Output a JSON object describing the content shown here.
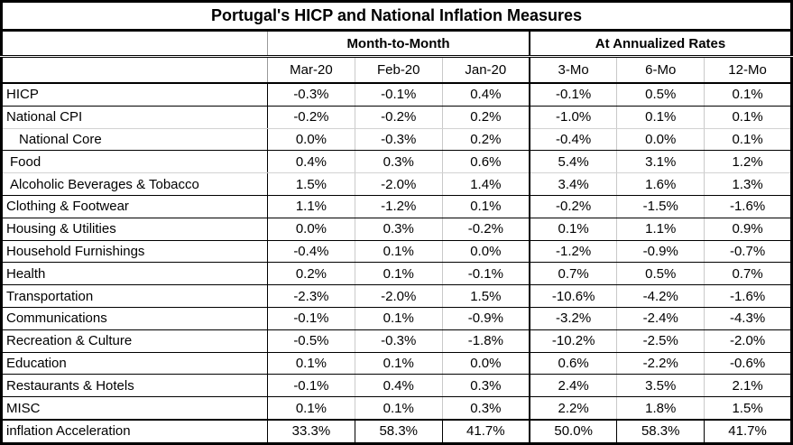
{
  "title": "Portugal's HICP and National Inflation Measures",
  "chart_data": {
    "type": "table",
    "title": "Portugal's HICP and National Inflation Measures",
    "column_groups": [
      {
        "label": "Month-to-Month",
        "span": 3
      },
      {
        "label": "At Annualized Rates",
        "span": 3
      }
    ],
    "columns": [
      "Mar-20",
      "Feb-20",
      "Jan-20",
      "3-Mo",
      "6-Mo",
      "12-Mo"
    ],
    "rows": [
      {
        "label": "HICP",
        "values": [
          "-0.3%",
          "-0.1%",
          "0.4%",
          "-0.1%",
          "0.5%",
          "0.1%"
        ]
      },
      {
        "label": "National CPI",
        "values": [
          "-0.2%",
          "-0.2%",
          "0.2%",
          "-1.0%",
          "0.1%",
          "0.1%"
        ]
      },
      {
        "label": "National Core",
        "values": [
          "0.0%",
          "-0.3%",
          "0.2%",
          "-0.4%",
          "0.0%",
          "0.1%"
        ]
      },
      {
        "label": "Food",
        "values": [
          "0.4%",
          "0.3%",
          "0.6%",
          "5.4%",
          "3.1%",
          "1.2%"
        ]
      },
      {
        "label": "Alcoholic Beverages & Tobacco",
        "values": [
          "1.5%",
          "-2.0%",
          "1.4%",
          "3.4%",
          "1.6%",
          "1.3%"
        ]
      },
      {
        "label": "Clothing & Footwear",
        "values": [
          "1.1%",
          "-1.2%",
          "0.1%",
          "-0.2%",
          "-1.5%",
          "-1.6%"
        ]
      },
      {
        "label": "Housing & Utilities",
        "values": [
          "0.0%",
          "0.3%",
          "-0.2%",
          "0.1%",
          "1.1%",
          "0.9%"
        ]
      },
      {
        "label": "Household Furnishings",
        "values": [
          "-0.4%",
          "0.1%",
          "0.0%",
          "-1.2%",
          "-0.9%",
          "-0.7%"
        ]
      },
      {
        "label": "Health",
        "values": [
          "0.2%",
          "0.1%",
          "-0.1%",
          "0.7%",
          "0.5%",
          "0.7%"
        ]
      },
      {
        "label": "Transportation",
        "values": [
          "-2.3%",
          "-2.0%",
          "1.5%",
          "-10.6%",
          "-4.2%",
          "-1.6%"
        ]
      },
      {
        "label": "Communications",
        "values": [
          "-0.1%",
          "0.1%",
          "-0.9%",
          "-3.2%",
          "-2.4%",
          "-4.3%"
        ]
      },
      {
        "label": "Recreation & Culture",
        "values": [
          "-0.5%",
          "-0.3%",
          "-1.8%",
          "-10.2%",
          "-2.5%",
          "-2.0%"
        ]
      },
      {
        "label": "Education",
        "values": [
          "0.1%",
          "0.1%",
          "0.0%",
          "0.6%",
          "-2.2%",
          "-0.6%"
        ]
      },
      {
        "label": "Restaurants & Hotels",
        "values": [
          "-0.1%",
          "0.4%",
          "0.3%",
          "2.4%",
          "3.5%",
          "2.1%"
        ]
      },
      {
        "label": "MISC",
        "values": [
          "0.1%",
          "0.1%",
          "0.3%",
          "2.2%",
          "1.8%",
          "1.5%"
        ]
      },
      {
        "label": "inflation Acceleration",
        "values": [
          "33.3%",
          "58.3%",
          "41.7%",
          "50.0%",
          "58.3%",
          "41.7%"
        ]
      }
    ]
  },
  "colors": {
    "border_black": "#000000",
    "grid_gray": "#c9c9c9",
    "background": "#ffffff",
    "text": "#000000"
  }
}
